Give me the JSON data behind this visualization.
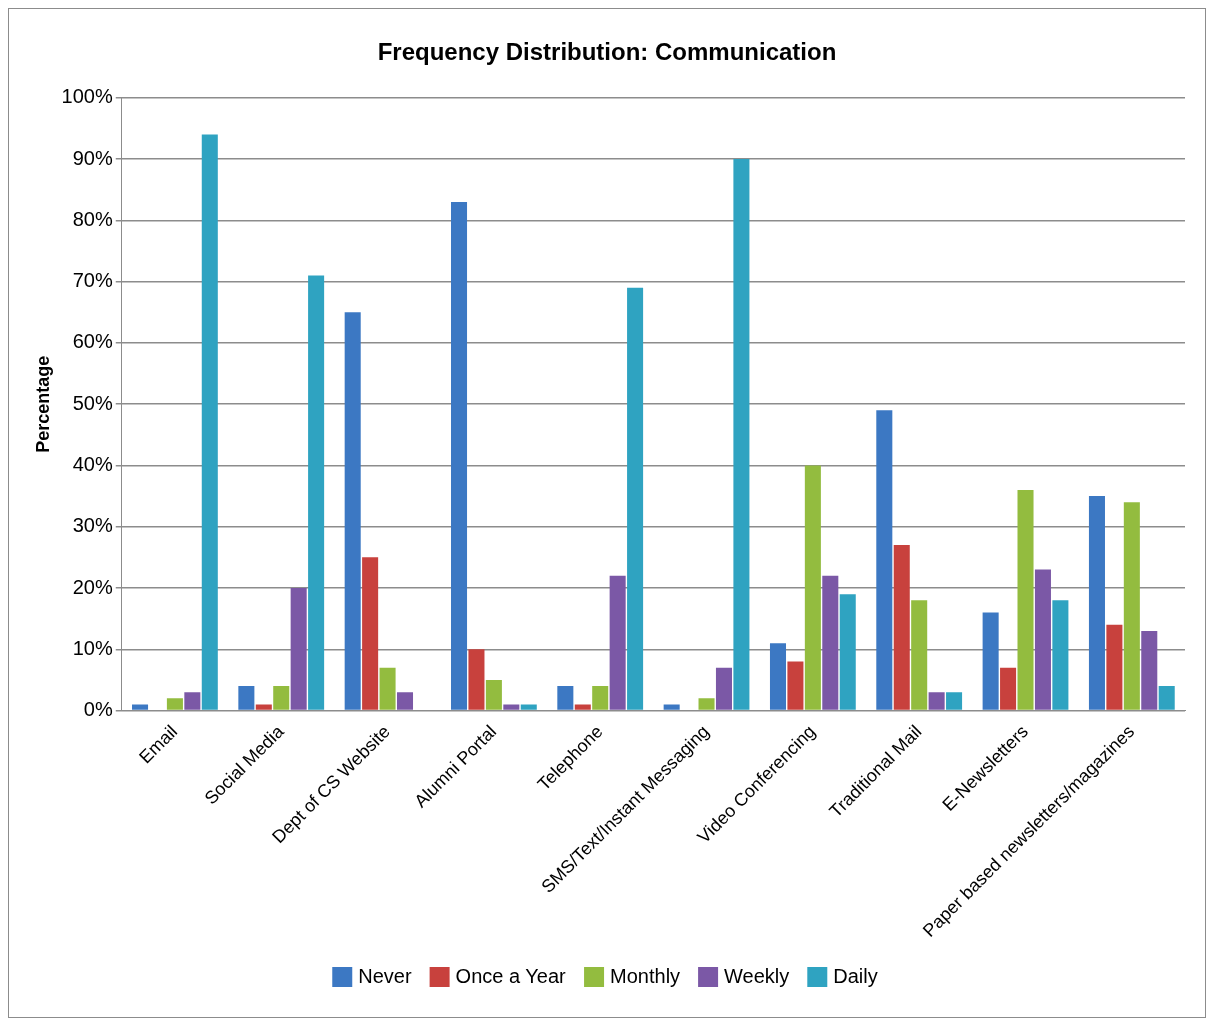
{
  "chart_data": {
    "type": "bar",
    "title": "Frequency Distribution: Communication",
    "ylabel": "Percentage",
    "categories": [
      "Email",
      "Social Media",
      "Dept of CS Website",
      "Alumni Portal",
      "Telephone",
      "SMS/Text/Instant Messaging",
      "Video Conferencing",
      "Traditional Mail",
      "E-Newsletters",
      "Paper based newsletters/magazines"
    ],
    "series": [
      {
        "name": "Never",
        "color": "#3c78c3",
        "values": [
          1,
          4,
          65,
          83,
          4,
          1,
          11,
          49,
          16,
          35
        ]
      },
      {
        "name": "Once a Year",
        "color": "#c8413d",
        "values": [
          0,
          1,
          25,
          10,
          1,
          0,
          8,
          27,
          7,
          14
        ]
      },
      {
        "name": "Monthly",
        "color": "#93bc3f",
        "values": [
          2,
          4,
          7,
          5,
          4,
          2,
          40,
          18,
          36,
          34
        ]
      },
      {
        "name": "Weekly",
        "color": "#7b58a6",
        "values": [
          3,
          20,
          3,
          1,
          22,
          7,
          22,
          3,
          23,
          13
        ]
      },
      {
        "name": "Daily",
        "color": "#2fa3c1",
        "values": [
          94,
          71,
          0,
          1,
          69,
          90,
          19,
          3,
          18,
          4
        ]
      }
    ],
    "ylim": [
      0,
      100
    ],
    "yticks": [
      {
        "value": 0,
        "label": "0%"
      },
      {
        "value": 10,
        "label": "10%"
      },
      {
        "value": 20,
        "label": "20%"
      },
      {
        "value": 30,
        "label": "30%"
      },
      {
        "value": 40,
        "label": "40%"
      },
      {
        "value": 50,
        "label": "50%"
      },
      {
        "value": 60,
        "label": "60%"
      },
      {
        "value": 70,
        "label": "70%"
      },
      {
        "value": 80,
        "label": "80%"
      },
      {
        "value": 90,
        "label": "90%"
      },
      {
        "value": 100,
        "label": "100%"
      }
    ],
    "grid": "y",
    "legend": "bottom"
  }
}
